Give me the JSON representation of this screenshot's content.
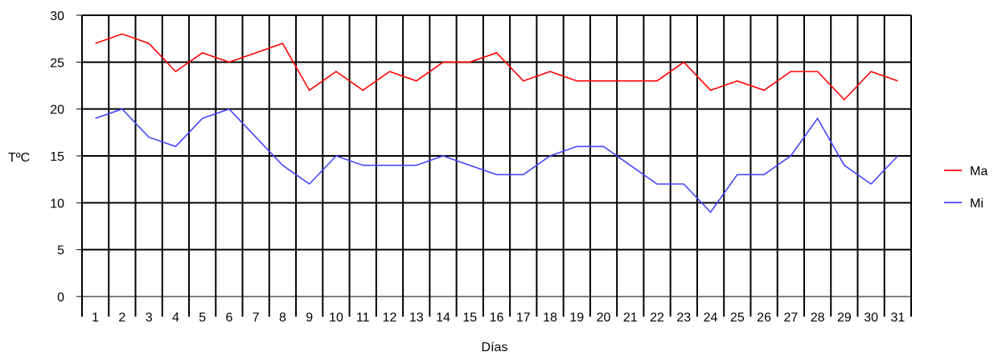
{
  "chart_data": {
    "type": "line",
    "xlabel": "Días",
    "ylabel": "TºC",
    "ylim": [
      0,
      30
    ],
    "yticks": [
      0,
      5,
      10,
      15,
      20,
      25,
      30
    ],
    "categories": [
      "1",
      "2",
      "3",
      "4",
      "5",
      "6",
      "7",
      "8",
      "9",
      "10",
      "11",
      "12",
      "13",
      "14",
      "15",
      "16",
      "17",
      "18",
      "19",
      "20",
      "21",
      "22",
      "23",
      "24",
      "25",
      "26",
      "27",
      "28",
      "29",
      "30",
      "31"
    ],
    "grid": true,
    "legend_position": "right",
    "series": [
      {
        "name": "Ma",
        "color": "#ff0000",
        "values": [
          27,
          28,
          27,
          24,
          26,
          25,
          26,
          27,
          22,
          24,
          22,
          24,
          23,
          25,
          25,
          26,
          23,
          24,
          23,
          23,
          23,
          23,
          25,
          22,
          23,
          22,
          24,
          24,
          21,
          24,
          23
        ]
      },
      {
        "name": "Mi",
        "color": "#4444ff",
        "values": [
          19,
          20,
          17,
          16,
          19,
          20,
          17,
          14,
          12,
          15,
          14,
          14,
          14,
          15,
          14,
          13,
          13,
          15,
          16,
          16,
          14,
          12,
          12,
          9,
          13,
          13,
          15,
          19,
          14,
          12,
          15
        ]
      }
    ]
  }
}
